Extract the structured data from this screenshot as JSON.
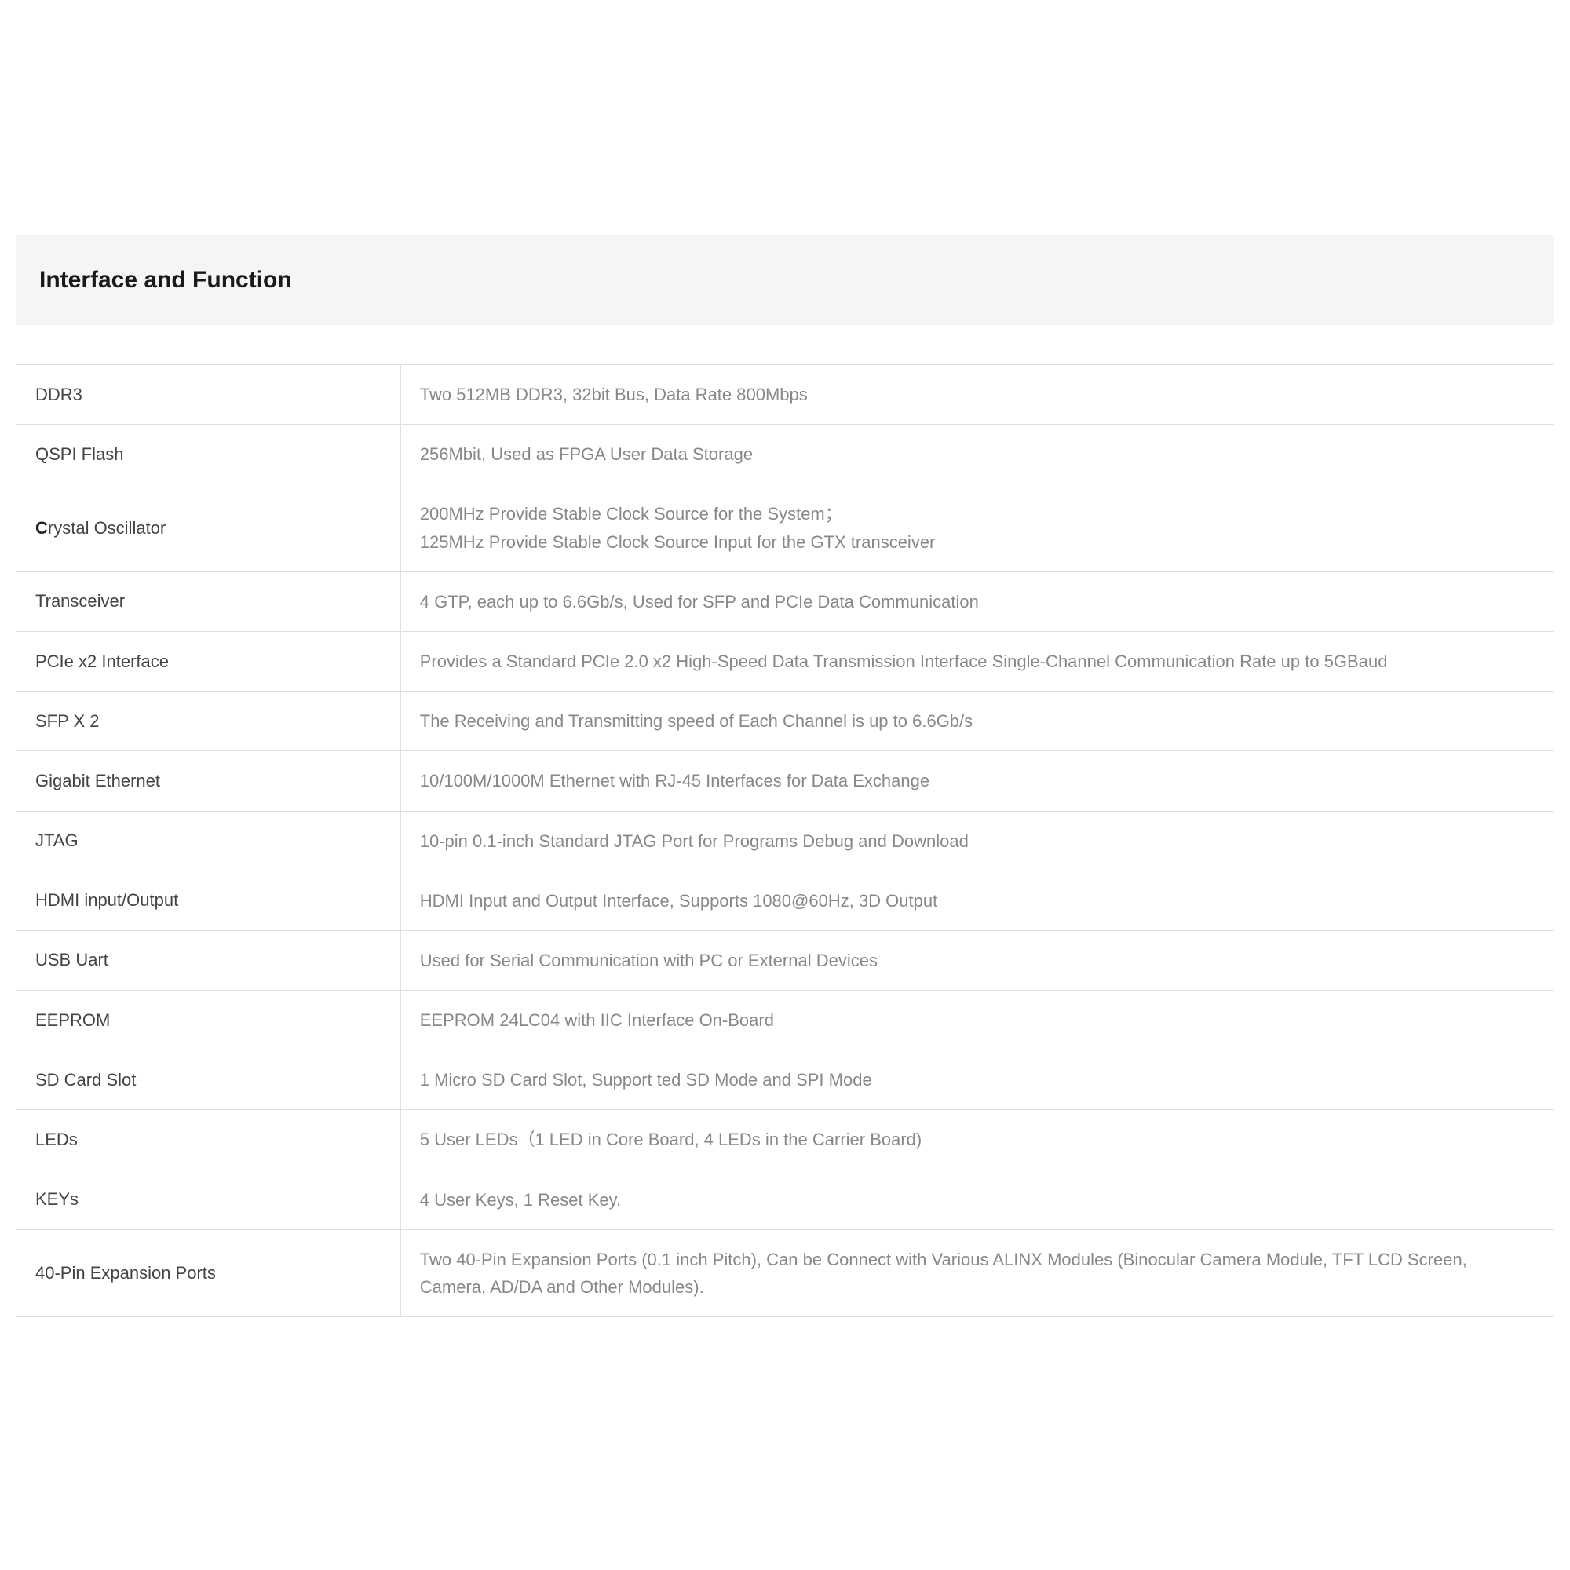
{
  "header": {
    "title": "Interface and Function"
  },
  "rows": [
    {
      "label": "DDR3",
      "value": "Two 512MB DDR3, 32bit Bus, Data Rate 800Mbps"
    },
    {
      "label": "QSPI Flash",
      "value": "256Mbit, Used as FPGA User Data Storage"
    },
    {
      "label": "rystal Oscillator",
      "label_prefix": "C",
      "value": "200MHz Provide Stable Clock Source for the System；\n125MHz Provide Stable Clock Source Input for the GTX transceiver"
    },
    {
      "label": "Transceiver",
      "value": "4 GTP, each up to 6.6Gb/s, Used for SFP and PCIe Data Communication"
    },
    {
      "label": "PCIe x2 Interface",
      "value": "Provides a Standard PCIe 2.0 x2 High-Speed Data Transmission Interface Single-Channel Communication Rate up to 5GBaud"
    },
    {
      "label": "SFP X 2",
      "value": "The Receiving and Transmitting speed of Each Channel is up to 6.6Gb/s"
    },
    {
      "label": "Gigabit Ethernet",
      "value": "10/100M/1000M Ethernet with RJ-45 Interfaces for Data Exchange"
    },
    {
      "label": "JTAG",
      "value": "10-pin 0.1-inch Standard JTAG Port for Programs Debug and Download"
    },
    {
      "label": "HDMI input/Output",
      "value": "HDMI Input and Output Interface, Supports 1080@60Hz, 3D Output"
    },
    {
      "label": "USB Uart",
      "value": "Used for Serial Communication with PC or External Devices"
    },
    {
      "label": "EEPROM",
      "value": "EEPROM 24LC04 with IIC Interface On-Board"
    },
    {
      "label": "SD Card Slot",
      "value": "1 Micro SD Card Slot, Support ted SD Mode and SPI Mode"
    },
    {
      "label": "LEDs",
      "value": "5 User LEDs（1 LED in Core Board, 4 LEDs in the Carrier Board)"
    },
    {
      "label": "KEYs",
      "value": "4 User Keys, 1 Reset Key."
    },
    {
      "label": "40-Pin Expansion Ports",
      "value": "Two 40-Pin Expansion Ports (0.1 inch Pitch), Can be Connect with Various ALINX Modules (Binocular Camera Module, TFT LCD Screen, Camera, AD/DA and Other Modules)."
    }
  ],
  "styling": {
    "type": "table",
    "columns": [
      "Interface",
      "Description"
    ],
    "background_color": "#ffffff",
    "header_bg": "#f5f5f5",
    "border_color": "#e0e0e0",
    "label_text_color": "#444444",
    "value_text_color": "#888888",
    "title_color": "#1a1a1a",
    "title_fontsize": 30,
    "cell_fontsize": 22,
    "label_column_width_pct": 25
  }
}
